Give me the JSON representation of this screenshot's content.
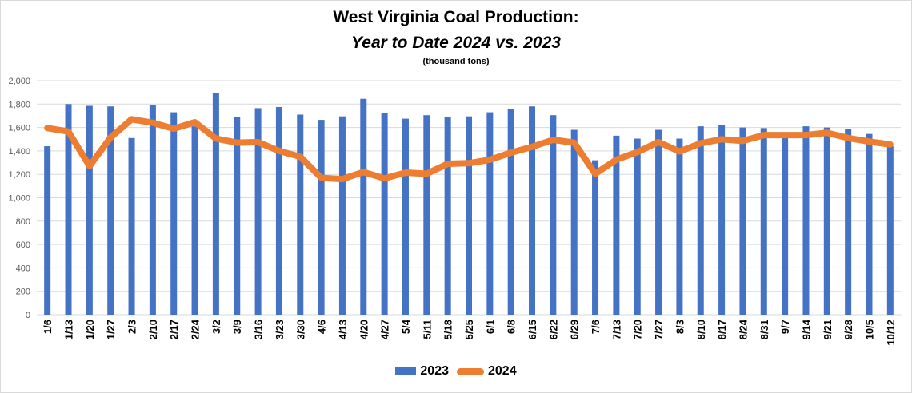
{
  "chart_data": {
    "type": "bar",
    "title": "West Virginia Coal Production:",
    "subtitle": "Year to Date 2024 vs. 2023",
    "unit_note": "(thousand tons)",
    "xlabel": "",
    "ylabel": "",
    "ylim": [
      0,
      2000
    ],
    "yticks": [
      0,
      200,
      400,
      600,
      800,
      1000,
      1200,
      1400,
      1600,
      1800,
      2000
    ],
    "ytick_labels": [
      "0",
      "200",
      "400",
      "600",
      "800",
      "1,000",
      "1,200",
      "1,400",
      "1,600",
      "1,800",
      "2,000"
    ],
    "grid": true,
    "legend": "bottom",
    "categories": [
      "1/6",
      "1/13",
      "1/20",
      "1/27",
      "2/3",
      "2/10",
      "2/17",
      "2/24",
      "3/2",
      "3/9",
      "3/16",
      "3/23",
      "3/30",
      "4/6",
      "4/13",
      "4/20",
      "4/27",
      "5/4",
      "5/11",
      "5/18",
      "5/25",
      "6/1",
      "6/8",
      "6/15",
      "6/22",
      "6/29",
      "7/6",
      "7/13",
      "7/20",
      "7/27",
      "8/3",
      "8/10",
      "8/17",
      "8/24",
      "8/31",
      "9/7",
      "9/14",
      "9/21",
      "9/28",
      "10/5",
      "10/12"
    ],
    "series": [
      {
        "name": "2023",
        "kind": "bar",
        "color": "#4472c4",
        "values": [
          1440,
          1800,
          1785,
          1780,
          1510,
          1790,
          1730,
          1610,
          1895,
          1690,
          1765,
          1775,
          1710,
          1665,
          1695,
          1845,
          1725,
          1675,
          1705,
          1690,
          1695,
          1730,
          1760,
          1780,
          1705,
          1580,
          1320,
          1530,
          1505,
          1580,
          1505,
          1610,
          1620,
          1600,
          1595,
          1520,
          1610,
          1600,
          1585,
          1545,
          1440
        ]
      },
      {
        "name": "2024",
        "kind": "line",
        "color": "#ed7d31",
        "values": [
          1595,
          1565,
          1270,
          1515,
          1670,
          1640,
          1590,
          1645,
          1505,
          1470,
          1475,
          1400,
          1350,
          1170,
          1160,
          1220,
          1165,
          1215,
          1205,
          1290,
          1295,
          1325,
          1385,
          1435,
          1495,
          1470,
          1205,
          1325,
          1390,
          1475,
          1395,
          1465,
          1500,
          1485,
          1535,
          1535,
          1535,
          1555,
          1510,
          1480,
          1455
        ]
      }
    ]
  }
}
